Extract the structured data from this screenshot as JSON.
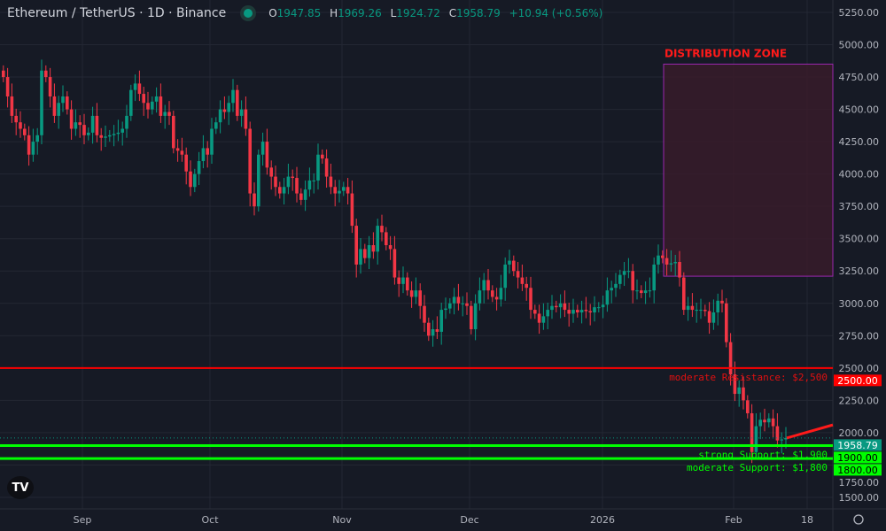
{
  "header": {
    "title": "Ethereum / TetherUS · 1D · Binance",
    "o_label": "O",
    "o": "1947.85",
    "h_label": "H",
    "h": "1969.26",
    "l_label": "L",
    "l": "1924.72",
    "c_label": "C",
    "c": "1958.79",
    "change": "+10.94 (+0.56%)",
    "status_color": "#089981"
  },
  "logo": "TV",
  "colors": {
    "up": "#089981",
    "down": "#f23645",
    "resistance": "#ff0000",
    "support": "#00ff00",
    "zone_fill": "#3a1c2a",
    "zone_border": "#9c27b0",
    "bg": "#161a25"
  },
  "chart_data": {
    "type": "candlestick",
    "ylim": [
      1500,
      5250
    ],
    "y_ticks": [
      "5250.00",
      "5000.00",
      "4750.00",
      "4500.00",
      "4250.00",
      "4000.00",
      "3750.00",
      "3500.00",
      "3250.00",
      "3000.00",
      "2750.00",
      "2500.00",
      "2250.00",
      "2000.00",
      "1750.00",
      "1500.00"
    ],
    "x_ticks": [
      "Sep",
      "Oct",
      "Nov",
      "Dec",
      "2026",
      "Feb",
      "18"
    ],
    "last_price": "1958.79",
    "closes": [
      4750,
      4600,
      4450,
      4400,
      4350,
      4300,
      4150,
      4250,
      4300,
      4800,
      4750,
      4600,
      4450,
      4550,
      4600,
      4500,
      4350,
      4400,
      4380,
      4300,
      4320,
      4450,
      4300,
      4280,
      4290,
      4300,
      4310,
      4320,
      4350,
      4450,
      4650,
      4700,
      4620,
      4550,
      4500,
      4560,
      4600,
      4450,
      4480,
      4450,
      4200,
      4180,
      4150,
      4020,
      3900,
      4000,
      4100,
      4200,
      4150,
      4350,
      4400,
      4500,
      4480,
      4550,
      4650,
      4450,
      4500,
      4350,
      3850,
      3750,
      4150,
      4250,
      4050,
      3980,
      3900,
      3850,
      3900,
      3980,
      3970,
      3850,
      3800,
      3880,
      3950,
      3950,
      4150,
      4120,
      3980,
      3900,
      3850,
      3870,
      3900,
      3850,
      3600,
      3300,
      3420,
      3350,
      3450,
      3400,
      3600,
      3550,
      3450,
      3420,
      3200,
      3150,
      3200,
      3100,
      3050,
      3100,
      2980,
      2850,
      2750,
      2800,
      2780,
      2950,
      2960,
      3000,
      3050,
      3000,
      3000,
      2980,
      2800,
      3000,
      3100,
      3180,
      3100,
      3050,
      3030,
      3120,
      3300,
      3330,
      3250,
      3200,
      3150,
      3120,
      2950,
      2920,
      2850,
      2900,
      2950,
      2980,
      2970,
      3000,
      2950,
      2920,
      2950,
      2930,
      2950,
      2940,
      2930,
      2970,
      2970,
      2990,
      3100,
      3120,
      3150,
      3220,
      3250,
      3250,
      3100,
      3100,
      3080,
      3100,
      3100,
      3300,
      3370,
      3350,
      3300,
      3310,
      3320,
      3200,
      2950,
      2980,
      2950,
      2950,
      2950,
      2940,
      2850,
      2930,
      3020,
      3000,
      2700,
      2450,
      2300,
      2350,
      2250,
      2150,
      1850,
      2050,
      2100,
      2080,
      2110,
      2050,
      1940,
      1947.85,
      1958.79
    ],
    "levels": [
      {
        "label": "moderate Resistance: $2,500",
        "price": 2500,
        "tag": "2500.00",
        "kind": "resistance"
      },
      {
        "label": "strong Support: $1,900",
        "price": 1900,
        "tag": "1900.00",
        "kind": "support"
      },
      {
        "label": "moderate Support: $1,800",
        "price": 1800,
        "tag": "1800.00",
        "kind": "support"
      }
    ],
    "zone": {
      "label": "DISTRIBUTION ZONE",
      "low": 3210,
      "high": 4850
    },
    "trendline": {
      "from": 1958.79,
      "to": 2060
    }
  }
}
